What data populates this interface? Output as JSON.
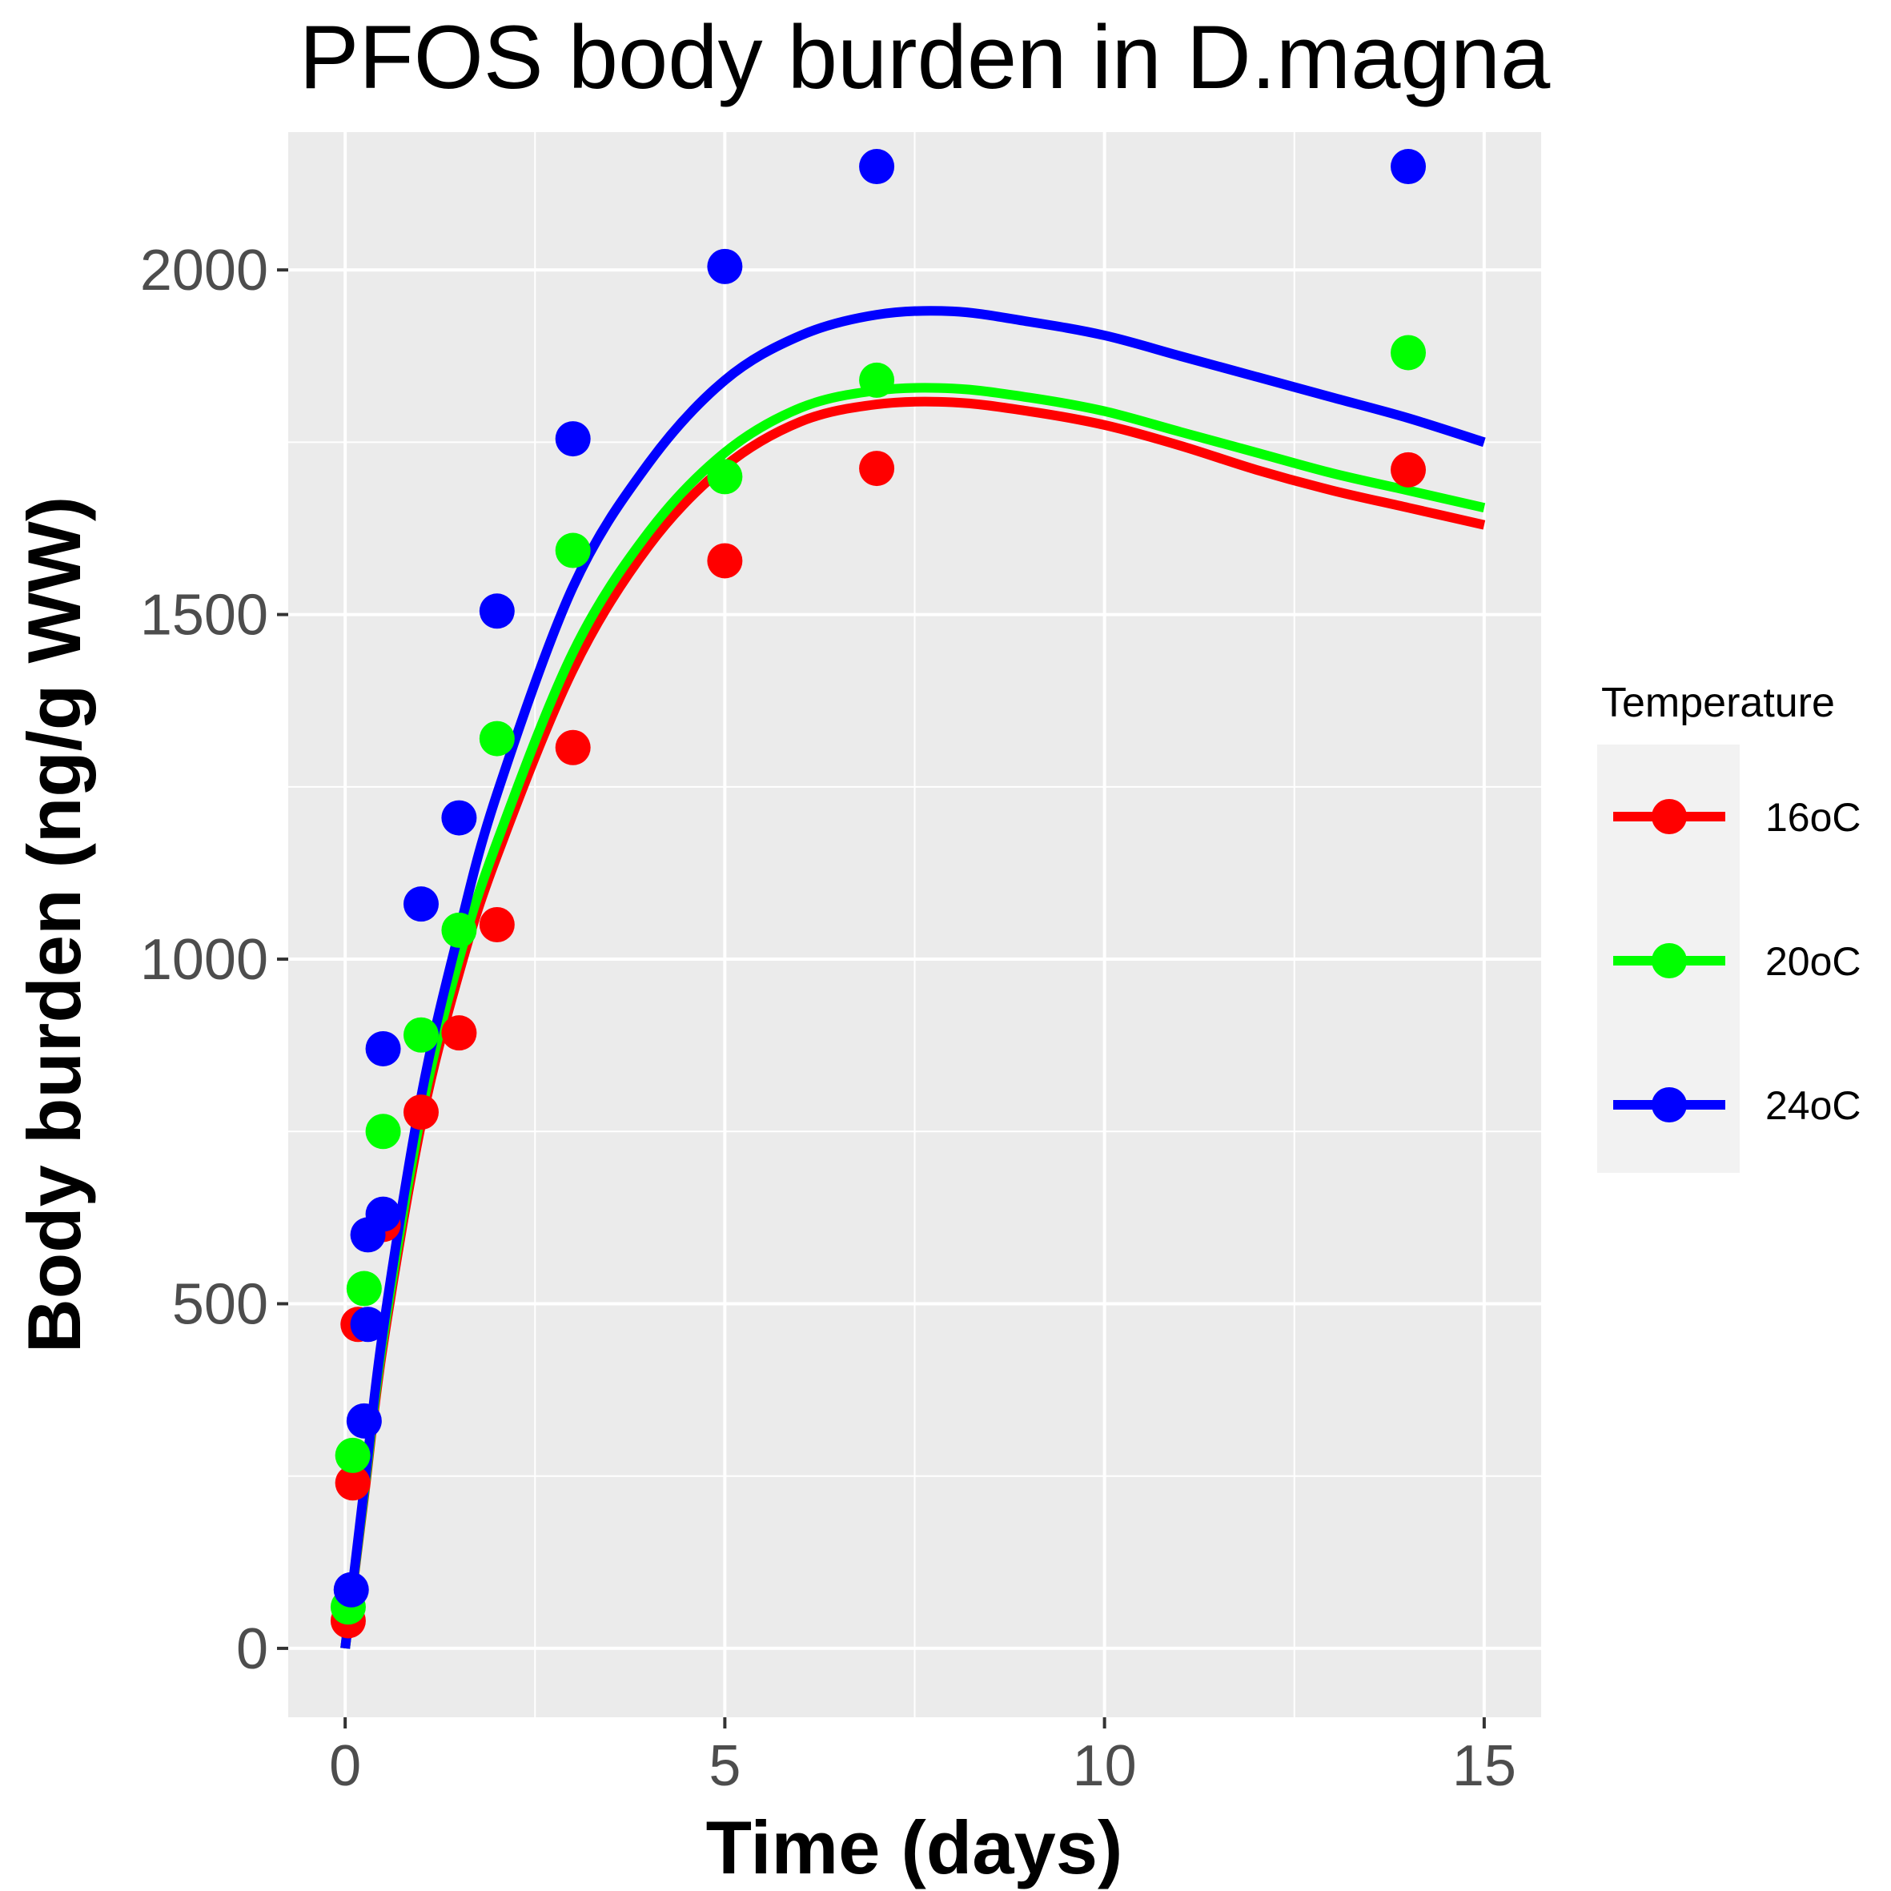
{
  "chart_data": {
    "type": "scatter",
    "title": "PFOS body burden in D.magna",
    "xlabel": "Time (days)",
    "ylabel": "Body burden (ng/g WW)",
    "xlim": [
      -0.75,
      15.75
    ],
    "ylim": [
      -100,
      2200
    ],
    "x_ticks": [
      0,
      5,
      10,
      15
    ],
    "y_ticks": [
      0,
      500,
      1000,
      1500,
      2000
    ],
    "x_tick_labels": [
      "0",
      "5",
      "10",
      "15"
    ],
    "y_tick_labels": [
      "0",
      "500",
      "1000",
      "1500",
      "2000"
    ],
    "grid": true,
    "legend": {
      "title": "Temperature",
      "position": "right"
    },
    "series": [
      {
        "name": "16oC",
        "color": "#ff0000",
        "points": [
          {
            "x": 0.04,
            "y": 40
          },
          {
            "x": 0.1,
            "y": 240
          },
          {
            "x": 0.17,
            "y": 470
          },
          {
            "x": 0.5,
            "y": 615
          },
          {
            "x": 1,
            "y": 778
          },
          {
            "x": 1.5,
            "y": 893
          },
          {
            "x": 2,
            "y": 1050
          },
          {
            "x": 3,
            "y": 1307
          },
          {
            "x": 5,
            "y": 1578
          },
          {
            "x": 7,
            "y": 1712
          },
          {
            "x": 14,
            "y": 1710
          }
        ],
        "fit": [
          {
            "x": 0,
            "y": 0
          },
          {
            "x": 0.25,
            "y": 220
          },
          {
            "x": 0.5,
            "y": 440
          },
          {
            "x": 1,
            "y": 760
          },
          {
            "x": 1.5,
            "y": 980
          },
          {
            "x": 2,
            "y": 1150
          },
          {
            "x": 3,
            "y": 1420
          },
          {
            "x": 4,
            "y": 1600
          },
          {
            "x": 5,
            "y": 1715
          },
          {
            "x": 6,
            "y": 1780
          },
          {
            "x": 7,
            "y": 1805
          },
          {
            "x": 8,
            "y": 1808
          },
          {
            "x": 9,
            "y": 1795
          },
          {
            "x": 10,
            "y": 1775
          },
          {
            "x": 11,
            "y": 1745
          },
          {
            "x": 12,
            "y": 1710
          },
          {
            "x": 13,
            "y": 1680
          },
          {
            "x": 14,
            "y": 1655
          },
          {
            "x": 15,
            "y": 1630
          }
        ]
      },
      {
        "name": "20oC",
        "color": "#00ff00",
        "points": [
          {
            "x": 0.04,
            "y": 60
          },
          {
            "x": 0.1,
            "y": 280
          },
          {
            "x": 0.25,
            "y": 522
          },
          {
            "x": 0.5,
            "y": 750
          },
          {
            "x": 1,
            "y": 890
          },
          {
            "x": 1.5,
            "y": 1042
          },
          {
            "x": 2,
            "y": 1320
          },
          {
            "x": 3,
            "y": 1593
          },
          {
            "x": 5,
            "y": 1700
          },
          {
            "x": 7,
            "y": 1840
          },
          {
            "x": 14,
            "y": 1880
          }
        ],
        "fit": [
          {
            "x": 0,
            "y": 0
          },
          {
            "x": 0.25,
            "y": 225
          },
          {
            "x": 0.5,
            "y": 450
          },
          {
            "x": 1,
            "y": 775
          },
          {
            "x": 1.5,
            "y": 1000
          },
          {
            "x": 2,
            "y": 1170
          },
          {
            "x": 3,
            "y": 1445
          },
          {
            "x": 4,
            "y": 1620
          },
          {
            "x": 5,
            "y": 1735
          },
          {
            "x": 6,
            "y": 1800
          },
          {
            "x": 7,
            "y": 1825
          },
          {
            "x": 8,
            "y": 1828
          },
          {
            "x": 9,
            "y": 1815
          },
          {
            "x": 10,
            "y": 1795
          },
          {
            "x": 11,
            "y": 1765
          },
          {
            "x": 12,
            "y": 1735
          },
          {
            "x": 13,
            "y": 1705
          },
          {
            "x": 14,
            "y": 1680
          },
          {
            "x": 15,
            "y": 1655
          }
        ]
      },
      {
        "name": "24oC",
        "color": "#0000ff",
        "points": [
          {
            "x": 0.08,
            "y": 85
          },
          {
            "x": 0.25,
            "y": 330
          },
          {
            "x": 0.3,
            "y": 600
          },
          {
            "x": 0.5,
            "y": 630
          },
          {
            "x": 0.3,
            "y": 470
          },
          {
            "x": 0.5,
            "y": 870
          },
          {
            "x": 1,
            "y": 1080
          },
          {
            "x": 1.5,
            "y": 1205
          },
          {
            "x": 2,
            "y": 1505
          },
          {
            "x": 3,
            "y": 1755
          },
          {
            "x": 5,
            "y": 2005
          },
          {
            "x": 7,
            "y": 2150
          },
          {
            "x": 14,
            "y": 2150
          }
        ],
        "fit": [
          {
            "x": 0,
            "y": 0
          },
          {
            "x": 0.25,
            "y": 232
          },
          {
            "x": 0.5,
            "y": 462
          },
          {
            "x": 1,
            "y": 800
          },
          {
            "x": 1.5,
            "y": 1040
          },
          {
            "x": 2,
            "y": 1240
          },
          {
            "x": 3,
            "y": 1540
          },
          {
            "x": 4,
            "y": 1720
          },
          {
            "x": 5,
            "y": 1840
          },
          {
            "x": 6,
            "y": 1905
          },
          {
            "x": 7,
            "y": 1935
          },
          {
            "x": 8,
            "y": 1940
          },
          {
            "x": 9,
            "y": 1925
          },
          {
            "x": 10,
            "y": 1905
          },
          {
            "x": 11,
            "y": 1875
          },
          {
            "x": 12,
            "y": 1845
          },
          {
            "x": 13,
            "y": 1815
          },
          {
            "x": 14,
            "y": 1785
          },
          {
            "x": 15,
            "y": 1750
          }
        ]
      }
    ]
  }
}
